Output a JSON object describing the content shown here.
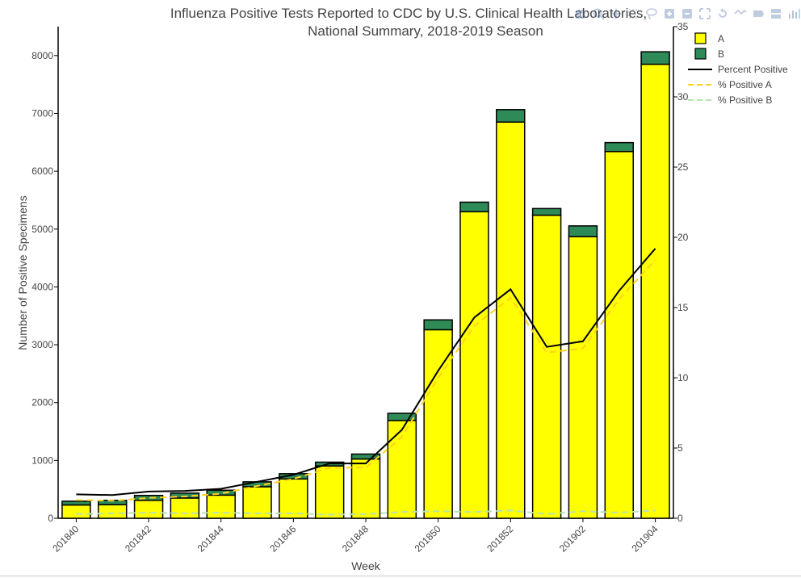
{
  "chart_data": {
    "type": "bar",
    "title_line1": "Influenza Positive Tests Reported to CDC by U.S. Clinical Health Laboratories,",
    "title_line2": "National Summary, 2018-2019 Season",
    "xlabel": "Week",
    "ylabel": "Number of Positive Specimens",
    "y2label": "",
    "ylim": [
      0,
      8500
    ],
    "y2lim": [
      0,
      35
    ],
    "yticks": [
      0,
      1000,
      2000,
      3000,
      4000,
      5000,
      6000,
      7000,
      8000
    ],
    "y2ticks": [
      0,
      5,
      10,
      15,
      20,
      25,
      30,
      35
    ],
    "x_tick_labels": [
      "201840",
      "201842",
      "201844",
      "201846",
      "201848",
      "201850",
      "201852",
      "201902",
      "201904"
    ],
    "categories": [
      "201840",
      "201841",
      "201842",
      "201843",
      "201844",
      "201845",
      "201846",
      "201847",
      "201848",
      "201849",
      "201850",
      "201851",
      "201852",
      "201901",
      "201902",
      "201903",
      "201904"
    ],
    "stacked": true,
    "series": [
      {
        "name": "A",
        "kind": "bar",
        "axis": "y",
        "color": "#ffff00",
        "values": [
          230,
          235,
          310,
          350,
          400,
          545,
          680,
          905,
          1025,
          1690,
          3260,
          5300,
          6850,
          5240,
          4870,
          6340,
          7850
        ]
      },
      {
        "name": "B",
        "kind": "bar",
        "axis": "y",
        "color": "#2e8b57",
        "values": [
          65,
          75,
          85,
          85,
          85,
          85,
          90,
          65,
          85,
          125,
          170,
          165,
          215,
          115,
          185,
          155,
          215
        ]
      },
      {
        "name": "Percent Positive",
        "kind": "line",
        "axis": "y2",
        "color": "#000000",
        "dash": "solid",
        "values": [
          1.7,
          1.65,
          1.9,
          1.95,
          2.1,
          2.6,
          3.1,
          3.9,
          3.9,
          6.3,
          10.5,
          14.3,
          16.3,
          12.2,
          12.6,
          16.2,
          19.2
        ]
      },
      {
        "name": "% Positive A",
        "kind": "line",
        "axis": "y2",
        "color": "#ffd21f",
        "dash": "dash",
        "values": [
          1.3,
          1.25,
          1.45,
          1.55,
          1.75,
          2.3,
          2.8,
          3.6,
          3.6,
          5.8,
          10.0,
          13.7,
          15.7,
          11.8,
          12.1,
          15.6,
          18.4
        ]
      },
      {
        "name": "% Positive B",
        "kind": "line",
        "axis": "y2",
        "color": "#b5e3b1",
        "dash": "dash",
        "values": [
          0.3,
          0.35,
          0.4,
          0.35,
          0.4,
          0.35,
          0.35,
          0.25,
          0.3,
          0.45,
          0.5,
          0.45,
          0.55,
          0.3,
          0.5,
          0.4,
          0.55
        ]
      }
    ],
    "legend_position": "top-right",
    "grid": false
  },
  "modebar": {
    "icons": [
      "camera-icon",
      "zoom-icon",
      "pan-icon",
      "box-select-icon",
      "lasso-icon",
      "zoom-in-icon",
      "zoom-out-icon",
      "autoscale-icon",
      "reset-axes-icon",
      "spike-lines-icon",
      "hover-closest-icon",
      "hover-compare-icon",
      "plotly-logo-icon"
    ]
  }
}
